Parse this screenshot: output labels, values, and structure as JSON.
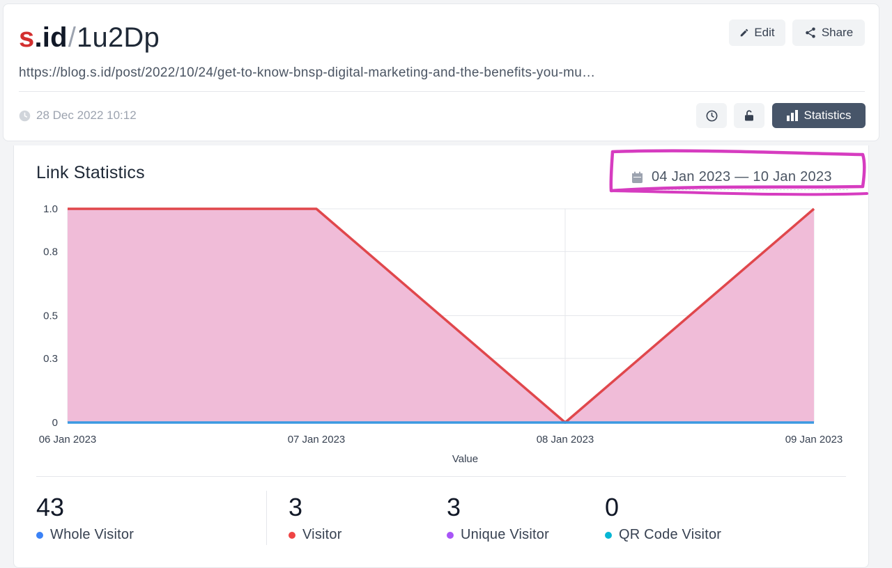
{
  "header": {
    "brand_s": "s",
    "brand_id": ".id",
    "slash": "/",
    "short_code": "1u2Dp",
    "long_url": "https://blog.s.id/post/2022/10/24/get-to-know-bnsp-digital-marketing-and-the-benefits-you-mu…",
    "created_at": "28 Dec 2022 10:12",
    "edit_label": "Edit",
    "share_label": "Share",
    "statistics_label": "Statistics",
    "icons": [
      "pencil-icon",
      "share-icon",
      "clock-icon",
      "history-icon",
      "unlock-icon",
      "bar-chart-icon"
    ]
  },
  "statistics": {
    "title": "Link Statistics",
    "date_range": "04 Jan 2023 — 10 Jan 2023",
    "calendar_icon": "calendar-icon",
    "highlight_color": "#d63cc0"
  },
  "chart_data": {
    "type": "area",
    "x": [
      "06 Jan 2023",
      "07 Jan 2023",
      "08 Jan 2023",
      "09 Jan 2023"
    ],
    "xlabel": "Value",
    "ylim": [
      0,
      1
    ],
    "yticks": [
      0,
      0.3,
      0.5,
      0.8,
      1.0
    ],
    "ytick_labels": [
      "0",
      "0.3",
      "0.5",
      "0.8",
      "1.0"
    ],
    "grid": true,
    "series": [
      {
        "name": "Visitor",
        "values": [
          1,
          1,
          0,
          1
        ],
        "color": "#e0474c",
        "fill": "#f0bcd8"
      },
      {
        "name": "QR Code Visitor",
        "values": [
          0,
          0,
          0,
          0
        ],
        "color": "#3b9ae1"
      }
    ]
  },
  "metrics": [
    {
      "value": "43",
      "label": "Whole Visitor",
      "color": "#3b82f6"
    },
    {
      "value": "3",
      "label": "Visitor",
      "color": "#ef4444"
    },
    {
      "value": "3",
      "label": "Unique Visitor",
      "color": "#a855f7"
    },
    {
      "value": "0",
      "label": "QR Code Visitor",
      "color": "#06b6d4"
    }
  ]
}
